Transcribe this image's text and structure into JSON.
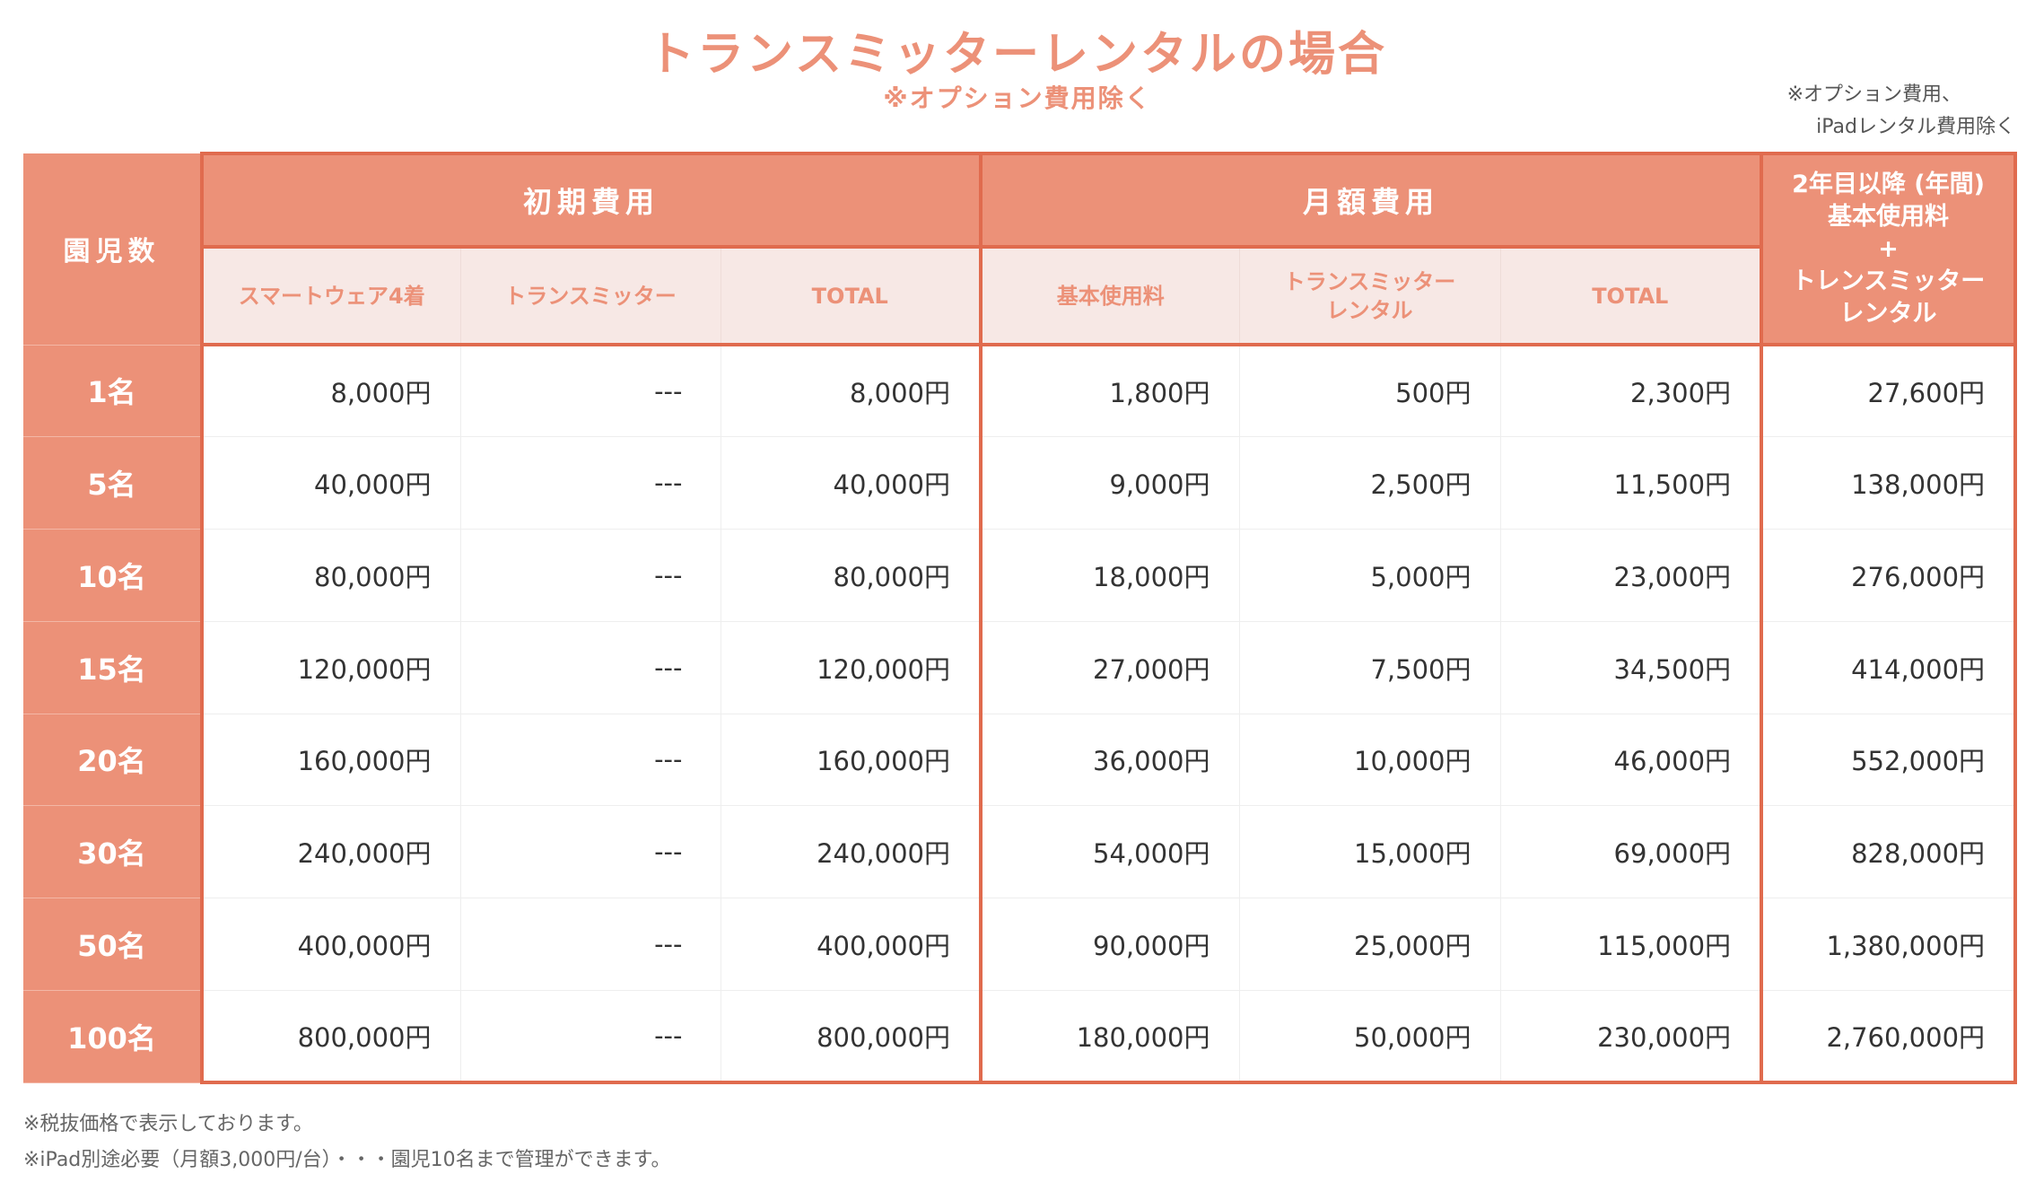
{
  "title": "トランスミッターレンタルの場合",
  "subtitle": "※オプション費用除く",
  "note": [
    "※オプション費用、",
    "iPadレンタル費用除く"
  ],
  "colors": {
    "header": "#EC9178",
    "border": "#E06B4E",
    "subheader_bg": "#F7E8E5"
  },
  "table": {
    "kids_header": "園児数",
    "group_initial": "初期費用",
    "group_monthly": "月額費用",
    "yearly_header": [
      "2年目以降 (年間)",
      "基本使用料",
      "+",
      "トレンスミッター",
      "レンタル"
    ],
    "sub_headers": [
      "スマートウェア4着",
      "トランスミッター",
      "TOTAL",
      "基本使用料",
      "トランスミッター レンタル",
      "TOTAL"
    ],
    "rows": [
      [
        "1名",
        "8,000円",
        "---",
        "8,000円",
        "1,800円",
        "500円",
        "2,300円",
        "27,600円"
      ],
      [
        "5名",
        "40,000円",
        "---",
        "40,000円",
        "9,000円",
        "2,500円",
        "11,500円",
        "138,000円"
      ],
      [
        "10名",
        "80,000円",
        "---",
        "80,000円",
        "18,000円",
        "5,000円",
        "23,000円",
        "276,000円"
      ],
      [
        "15名",
        "120,000円",
        "---",
        "120,000円",
        "27,000円",
        "7,500円",
        "34,500円",
        "414,000円"
      ],
      [
        "20名",
        "160,000円",
        "---",
        "160,000円",
        "36,000円",
        "10,000円",
        "46,000円",
        "552,000円"
      ],
      [
        "30名",
        "240,000円",
        "---",
        "240,000円",
        "54,000円",
        "15,000円",
        "69,000円",
        "828,000円"
      ],
      [
        "50名",
        "400,000円",
        "---",
        "400,000円",
        "90,000円",
        "25,000円",
        "115,000円",
        "1,380,000円"
      ],
      [
        "100名",
        "800,000円",
        "---",
        "800,000円",
        "180,000円",
        "50,000円",
        "230,000円",
        "2,760,000円"
      ]
    ]
  },
  "footnotes": [
    "※税抜価格で表示しております。",
    "※iPad別途必要（月額3,000円/台）・・・園児10名まで管理ができます。"
  ]
}
